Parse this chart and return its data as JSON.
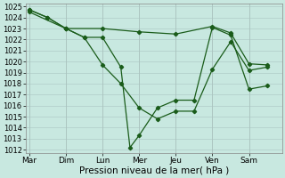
{
  "title": "",
  "xlabel": "Pression niveau de la mer( hPa )",
  "background_color": "#c8e8e0",
  "grid_color": "#b0ccc8",
  "line_color": "#1a5c1a",
  "ylim": [
    1012,
    1025
  ],
  "yticks": [
    1012,
    1013,
    1014,
    1015,
    1016,
    1017,
    1018,
    1019,
    1020,
    1021,
    1022,
    1023,
    1024,
    1025
  ],
  "x_labels": [
    "Mar",
    "Dim",
    "Lun",
    "Mer",
    "Jeu",
    "Ven",
    "Sam"
  ],
  "x_positions": [
    0,
    1,
    2,
    3,
    4,
    5,
    6
  ],
  "xlim": [
    -0.1,
    6.9
  ],
  "series1_x": [
    0,
    0.5,
    1,
    1.5,
    2,
    2.5,
    3,
    3.5,
    4,
    4.5,
    5,
    5.5,
    6,
    6.5
  ],
  "series1_y": [
    1024.7,
    1024.0,
    1023.0,
    1022.2,
    1019.7,
    1018.0,
    1015.8,
    1014.8,
    1015.5,
    1015.5,
    1019.3,
    1021.8,
    1019.2,
    1019.5
  ],
  "series2_x": [
    0,
    0.5,
    1,
    1.5,
    2,
    2.5,
    2.75,
    3,
    3.5,
    4,
    4.5,
    5,
    5.5,
    6,
    6.5
  ],
  "series2_y": [
    1024.7,
    1024.0,
    1023.0,
    1022.2,
    1022.2,
    1019.5,
    1012.2,
    1013.3,
    1015.8,
    1016.5,
    1016.5,
    1023.1,
    1022.4,
    1017.5,
    1017.8
  ],
  "series3_x": [
    0,
    1,
    2,
    3,
    4,
    5,
    5.5,
    6,
    6.5
  ],
  "series3_y": [
    1024.5,
    1023.0,
    1023.0,
    1022.7,
    1022.5,
    1023.2,
    1022.6,
    1019.8,
    1019.7
  ]
}
